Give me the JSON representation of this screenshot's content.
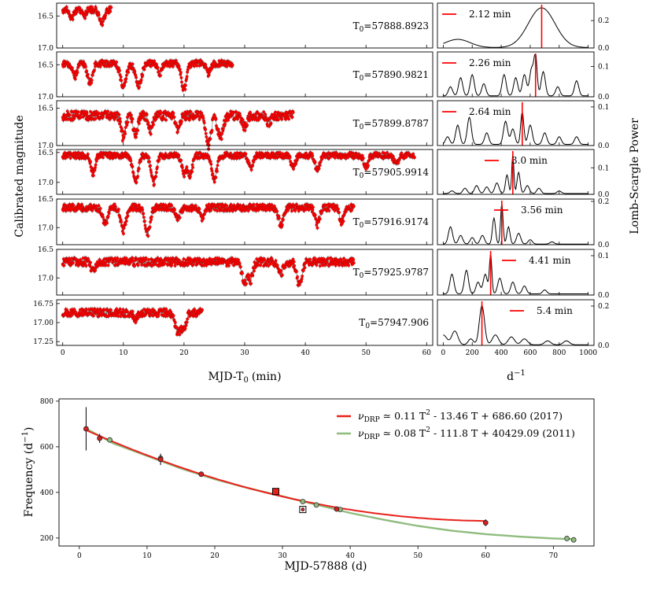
{
  "chart_data": [
    {
      "type": "scatter",
      "panel": "light-curves",
      "xlabel": "MJD-T",
      "xlabel_sub": "0",
      "xlabel_unit": "(min)",
      "ylabel": "Calibrated magnitude",
      "xlim": [
        -1,
        61
      ],
      "xticks": [
        "0",
        "10",
        "20",
        "30",
        "40",
        "50",
        "60"
      ],
      "point_color": "#ff0000",
      "panels": [
        {
          "t0": "57888.8923",
          "xmax": 8,
          "base": 16.4,
          "dips": [
            [
              1.5,
              0.12,
              0.5
            ],
            [
              3.5,
              0.1,
              0.5
            ],
            [
              6.5,
              0.2,
              0.6
            ]
          ],
          "noise": 0.05,
          "ylim": [
            16.3,
            17.0
          ],
          "yticks": [
            "16.5",
            "17.0"
          ],
          "yvals": [
            16.5,
            17.0
          ]
        },
        {
          "t0": "57890.9821",
          "xmax": 28,
          "base": 16.48,
          "dips": [
            [
              2,
              0.2,
              0.5
            ],
            [
              4.5,
              0.3,
              0.6
            ],
            [
              10,
              0.35,
              0.7
            ],
            [
              12.5,
              0.35,
              0.7
            ],
            [
              16,
              0.15,
              0.5
            ],
            [
              20,
              0.4,
              0.6
            ],
            [
              24,
              0.15,
              0.5
            ]
          ],
          "noise": 0.05,
          "ylim": [
            16.3,
            17.0
          ],
          "yticks": [
            "16.5",
            "17.0"
          ],
          "yvals": [
            16.5,
            17.0
          ]
        },
        {
          "t0": "57899.8787",
          "xmax": 38,
          "base": 16.6,
          "dips": [
            [
              10,
              0.3,
              0.5
            ],
            [
              12,
              0.25,
              0.5
            ],
            [
              14.5,
              0.2,
              0.5
            ],
            [
              19,
              0.2,
              0.5
            ],
            [
              24,
              0.4,
              0.6
            ],
            [
              26,
              0.3,
              0.6
            ],
            [
              30,
              0.15,
              0.5
            ],
            [
              34,
              0.1,
              0.5
            ]
          ],
          "noise": 0.06,
          "ylim": [
            16.4,
            17.0
          ],
          "yticks": [
            "16.5",
            "17.0"
          ],
          "yvals": [
            16.5,
            17.0
          ]
        },
        {
          "t0": "57905.9914",
          "xmax": 58,
          "base": 16.55,
          "dips": [
            [
              5,
              0.3,
              0.5
            ],
            [
              12,
              0.45,
              0.6
            ],
            [
              15,
              0.45,
              0.6
            ],
            [
              20,
              0.3,
              0.5
            ],
            [
              21,
              0.35,
              0.5
            ],
            [
              25,
              0.4,
              0.6
            ],
            [
              31,
              0.2,
              0.5
            ],
            [
              38,
              0.2,
              0.5
            ],
            [
              42,
              0.25,
              0.5
            ],
            [
              50,
              0.2,
              0.5
            ],
            [
              55,
              0.15,
              0.5
            ]
          ],
          "noise": 0.05,
          "ylim": [
            16.45,
            17.2
          ],
          "yticks": [
            "16.5",
            "17.0"
          ],
          "yvals": [
            16.5,
            17.0
          ]
        },
        {
          "t0": "57916.9174",
          "xmax": 48,
          "base": 16.65,
          "dips": [
            [
              7,
              0.3,
              0.6
            ],
            [
              10,
              0.4,
              0.6
            ],
            [
              14,
              0.45,
              0.6
            ],
            [
              19,
              0.2,
              0.5
            ],
            [
              23,
              0.2,
              0.5
            ],
            [
              36,
              0.3,
              0.6
            ],
            [
              42,
              0.3,
              0.5
            ],
            [
              46,
              0.25,
              0.5
            ]
          ],
          "noise": 0.06,
          "ylim": [
            16.5,
            17.3
          ],
          "yticks": [
            "16.5",
            "17.0"
          ],
          "yvals": [
            16.5,
            17.0
          ]
        },
        {
          "t0": "57925.9787",
          "xmax": 48,
          "base": 16.72,
          "dips": [
            [
              5,
              0.15,
              0.5
            ],
            [
              30,
              0.35,
              0.6
            ],
            [
              31,
              0.3,
              0.5
            ],
            [
              36,
              0.2,
              0.5
            ],
            [
              39,
              0.4,
              0.6
            ]
          ],
          "noise": 0.07,
          "ylim": [
            16.5,
            17.3
          ],
          "yticks": [
            "16.5",
            "17.0"
          ],
          "yvals": [
            16.5,
            17.0
          ]
        },
        {
          "t0": "57947.906",
          "xmax": 23,
          "base": 16.87,
          "dips": [
            [
              12,
              0.08,
              0.5
            ],
            [
              19,
              0.25,
              0.7
            ],
            [
              20,
              0.2,
              0.5
            ]
          ],
          "noise": 0.05,
          "ylim": [
            16.7,
            17.3
          ],
          "yticks": [
            "16.75",
            "17.00",
            "17.25"
          ],
          "yvals": [
            16.75,
            17.0,
            17.25
          ]
        }
      ]
    },
    {
      "type": "line",
      "panel": "periodograms",
      "xlabel": "d",
      "xlabel_sup": "−1",
      "ylabel": "Lomb-Scargle Power",
      "xlim": [
        -40,
        1040
      ],
      "xticks": [
        "0",
        "200",
        "400",
        "600",
        "800",
        "1000"
      ],
      "line_color": "#000000",
      "marker_color": "#ff0000",
      "panels": [
        {
          "period_label": "2.12 min",
          "peak_freq": 679,
          "yticks": [
            "0.0",
            "0.2"
          ],
          "yvals": [
            0,
            0.2
          ],
          "ymax": 0.31,
          "peaks": [
            [
              100,
              0.06,
              120
            ],
            [
              679,
              0.29,
              130
            ]
          ]
        },
        {
          "period_label": "2.26 min",
          "peak_freq": 637,
          "yticks": [
            "0.0",
            "0.1"
          ],
          "yvals": [
            0,
            0.1
          ],
          "ymax": 0.14,
          "peaks": [
            [
              50,
              0.03,
              20
            ],
            [
              120,
              0.06,
              20
            ],
            [
              200,
              0.07,
              20
            ],
            [
              280,
              0.04,
              20
            ],
            [
              420,
              0.07,
              20
            ],
            [
              500,
              0.06,
              20
            ],
            [
              560,
              0.07,
              20
            ],
            [
              610,
              0.09,
              20
            ],
            [
              637,
              0.13,
              15
            ],
            [
              690,
              0.08,
              20
            ],
            [
              790,
              0.03,
              20
            ],
            [
              920,
              0.05,
              20
            ]
          ]
        },
        {
          "period_label": "2.64 min",
          "peak_freq": 545,
          "yticks": [
            "0.0",
            "0.1"
          ],
          "yvals": [
            0,
            0.1
          ],
          "ymax": 0.11,
          "peaks": [
            [
              30,
              0.02,
              20
            ],
            [
              100,
              0.05,
              20
            ],
            [
              180,
              0.07,
              20
            ],
            [
              300,
              0.03,
              20
            ],
            [
              430,
              0.06,
              20
            ],
            [
              480,
              0.04,
              20
            ],
            [
              545,
              0.085,
              15
            ],
            [
              600,
              0.05,
              20
            ],
            [
              700,
              0.03,
              20
            ],
            [
              800,
              0.02,
              20
            ],
            [
              920,
              0.02,
              20
            ]
          ]
        },
        {
          "period_label": "3.0 min",
          "peak_freq": 480,
          "yticks": [
            "0.0",
            "0.1"
          ],
          "yvals": [
            0,
            0.1
          ],
          "ymax": 0.16,
          "peaks": [
            [
              60,
              0.01,
              20
            ],
            [
              150,
              0.02,
              20
            ],
            [
              230,
              0.03,
              20
            ],
            [
              300,
              0.025,
              20
            ],
            [
              370,
              0.04,
              20
            ],
            [
              440,
              0.07,
              15
            ],
            [
              480,
              0.15,
              10
            ],
            [
              520,
              0.08,
              15
            ],
            [
              580,
              0.03,
              20
            ],
            [
              660,
              0.02,
              20
            ],
            [
              800,
              0.01,
              20
            ]
          ]
        },
        {
          "period_label": "3.56 min",
          "peak_freq": 404,
          "yticks": [
            "0.0",
            "0.2"
          ],
          "yvals": [
            0,
            0.2
          ],
          "ymax": 0.2,
          "peaks": [
            [
              50,
              0.08,
              20
            ],
            [
              120,
              0.04,
              20
            ],
            [
              200,
              0.03,
              20
            ],
            [
              270,
              0.04,
              20
            ],
            [
              350,
              0.12,
              15
            ],
            [
              404,
              0.19,
              12
            ],
            [
              450,
              0.08,
              15
            ],
            [
              520,
              0.05,
              20
            ],
            [
              600,
              0.02,
              20
            ],
            [
              750,
              0.01,
              20
            ]
          ]
        },
        {
          "period_label": "4.41 min",
          "peak_freq": 327,
          "yticks": [
            "0.0",
            "0.1"
          ],
          "yvals": [
            0,
            0.1
          ],
          "ymax": 0.11,
          "peaks": [
            [
              60,
              0.05,
              20
            ],
            [
              160,
              0.06,
              20
            ],
            [
              240,
              0.03,
              20
            ],
            [
              290,
              0.05,
              20
            ],
            [
              327,
              0.1,
              12
            ],
            [
              390,
              0.04,
              20
            ],
            [
              480,
              0.03,
              20
            ],
            [
              560,
              0.02,
              20
            ],
            [
              700,
              0.01,
              20
            ]
          ]
        },
        {
          "period_label": "5.4 min",
          "peak_freq": 267,
          "yticks": [
            "0.0",
            "0.2"
          ],
          "yvals": [
            0,
            0.2
          ],
          "ymax": 0.22,
          "peaks": [
            [
              0,
              0.05,
              35
            ],
            [
              80,
              0.07,
              30
            ],
            [
              190,
              0.03,
              25
            ],
            [
              267,
              0.2,
              25
            ],
            [
              360,
              0.05,
              30
            ],
            [
              470,
              0.04,
              30
            ],
            [
              560,
              0.03,
              30
            ],
            [
              720,
              0.02,
              30
            ],
            [
              850,
              0.02,
              30
            ]
          ]
        }
      ]
    },
    {
      "type": "scatter",
      "panel": "frequency-evolution",
      "xlabel": "MJD-57888 (d)",
      "ylabel": "Frequency (d",
      "ylabel_sup": "−1",
      "ylabel_close": ")",
      "xlim": [
        -3,
        76
      ],
      "ylim": [
        165,
        810
      ],
      "xticks": [
        0,
        10,
        20,
        30,
        40,
        50,
        60,
        70
      ],
      "yticks": [
        200,
        400,
        600,
        800
      ],
      "legend": [
        {
          "prefix": "ν",
          "sub": "DRP",
          "text": " ≃ 0.11 T",
          "sup": "2",
          "rest": " - 13.46 T + 686.60 (2017)",
          "color": "#e8221b"
        },
        {
          "prefix": "ν",
          "sub": "DRP",
          "text": " ≃ 0.08 T",
          "sup": "2",
          "rest": " - 111.8 T + 40429.09 (2011)",
          "color": "#8fbc7e"
        }
      ],
      "fit_2017": {
        "a": 0.11,
        "b": -13.46,
        "c": 686.6,
        "t_range": [
          1,
          60
        ]
      },
      "fit_2011_points": [
        [
          1,
          680
        ],
        [
          5,
          615
        ],
        [
          10,
          560
        ],
        [
          15,
          505
        ],
        [
          20,
          458
        ],
        [
          25,
          418
        ],
        [
          30,
          383
        ],
        [
          35,
          346
        ],
        [
          40,
          310
        ],
        [
          45,
          280
        ],
        [
          50,
          253
        ],
        [
          55,
          232
        ],
        [
          60,
          217
        ],
        [
          65,
          206
        ],
        [
          70,
          198
        ],
        [
          73,
          195
        ]
      ],
      "points_2017": [
        {
          "x": 1,
          "y": 679,
          "err": 95
        },
        {
          "x": 3,
          "y": 637,
          "err": 20
        },
        {
          "x": 12,
          "y": 545,
          "err": 25
        },
        {
          "x": 18,
          "y": 480,
          "err": 5
        },
        {
          "x": 38,
          "y": 327,
          "err": 5
        },
        {
          "x": 60,
          "y": 267,
          "err": 15
        }
      ],
      "points_2011": [
        {
          "x": 4.5,
          "y": 630
        },
        {
          "x": 12,
          "y": 550
        },
        {
          "x": 33,
          "y": 360
        },
        {
          "x": 35,
          "y": 345
        },
        {
          "x": 38.5,
          "y": 325
        },
        {
          "x": 72,
          "y": 198
        },
        {
          "x": 73,
          "y": 192
        }
      ],
      "squares": [
        {
          "x": 29,
          "y": 404,
          "style": "filled"
        },
        {
          "x": 33,
          "y": 325,
          "style": "open"
        }
      ]
    }
  ]
}
